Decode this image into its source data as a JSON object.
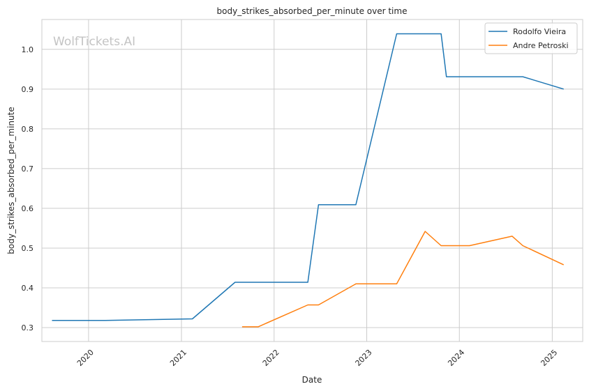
{
  "chart_data": {
    "type": "line",
    "title": "body_strikes_absorbed_per_minute over time",
    "xlabel": "Date",
    "ylabel": "body_strikes_absorbed_per_minute",
    "watermark": "WolfTickets.AI",
    "xlim": [
      "2019-07-01",
      "2025-05-01"
    ],
    "ylim": [
      0.265,
      1.075
    ],
    "xticks": [
      "2020-01-01",
      "2021-01-01",
      "2022-01-01",
      "2023-01-01",
      "2024-01-01",
      "2025-01-01"
    ],
    "xtick_labels": [
      "2020",
      "2021",
      "2022",
      "2023",
      "2024",
      "2025"
    ],
    "yticks": [
      0.3,
      0.4,
      0.5,
      0.6,
      0.7,
      0.8,
      0.9,
      1.0
    ],
    "ytick_labels": [
      "0.3",
      "0.4",
      "0.5",
      "0.6",
      "0.7",
      "0.8",
      "0.9",
      "1.0"
    ],
    "grid": true,
    "legend_position": "top-right",
    "series": [
      {
        "name": "Rodolfo Vieira",
        "color": "#1f77b4",
        "points": [
          [
            "2019-08-10",
            0.318
          ],
          [
            "2020-03-07",
            0.318
          ],
          [
            "2021-02-13",
            0.322
          ],
          [
            "2021-07-31",
            0.414
          ],
          [
            "2022-05-14",
            0.414
          ],
          [
            "2022-06-25",
            0.609
          ],
          [
            "2022-11-19",
            0.609
          ],
          [
            "2023-04-29",
            1.039
          ],
          [
            "2023-10-21",
            1.039
          ],
          [
            "2023-11-11",
            0.931
          ],
          [
            "2024-09-07",
            0.931
          ],
          [
            "2025-02-15",
            0.9
          ]
        ]
      },
      {
        "name": "Andre Petroski",
        "color": "#ff7f0e",
        "points": [
          [
            "2021-08-28",
            0.302
          ],
          [
            "2021-10-30",
            0.302
          ],
          [
            "2022-05-14",
            0.357
          ],
          [
            "2022-06-25",
            0.357
          ],
          [
            "2022-11-19",
            0.41
          ],
          [
            "2023-04-29",
            0.41
          ],
          [
            "2023-08-19",
            0.542
          ],
          [
            "2023-10-21",
            0.506
          ],
          [
            "2024-02-10",
            0.506
          ],
          [
            "2024-07-27",
            0.53
          ],
          [
            "2024-09-07",
            0.506
          ],
          [
            "2025-02-15",
            0.458
          ]
        ]
      }
    ]
  }
}
